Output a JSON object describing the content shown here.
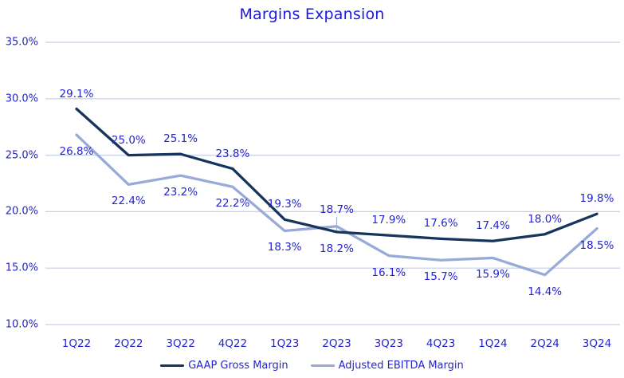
{
  "chart_data": {
    "type": "line",
    "title": "Margins Expansion",
    "categories": [
      "1Q22",
      "2Q22",
      "3Q22",
      "4Q22",
      "1Q23",
      "2Q23",
      "3Q23",
      "4Q23",
      "1Q24",
      "2Q24",
      "3Q24"
    ],
    "series": [
      {
        "name": "GAAP Gross Margin",
        "color": "#17355c",
        "values": [
          29.1,
          25.0,
          25.1,
          23.8,
          19.3,
          18.2,
          17.9,
          17.6,
          17.4,
          18.0,
          19.8
        ],
        "label_side": [
          "above",
          "above",
          "above",
          "above",
          "above",
          "below",
          "above",
          "above",
          "above",
          "above",
          "above"
        ]
      },
      {
        "name": "Adjusted EBITDA Margin",
        "color": "#98abd8",
        "values": [
          26.8,
          22.4,
          23.2,
          22.2,
          18.3,
          18.7,
          16.1,
          15.7,
          15.9,
          14.4,
          18.5
        ],
        "label_side": [
          "below",
          "below",
          "below",
          "below",
          "below",
          "above_leader",
          "below",
          "below",
          "below",
          "below",
          "below"
        ]
      }
    ],
    "ylim": [
      10,
      35
    ],
    "ytick_step": 5,
    "ytick_labels": [
      "35.0%",
      "30.0%",
      "25.0%",
      "20.0%",
      "15.0%",
      "10.0%"
    ],
    "value_suffix": "%",
    "grid": true,
    "legend_position": "bottom",
    "colors": {
      "title": "#1b18e8",
      "labels": "#2424cf",
      "gridline": "#c9cdec",
      "leader_line": "#a6aecf",
      "background": "#ffffff"
    }
  }
}
